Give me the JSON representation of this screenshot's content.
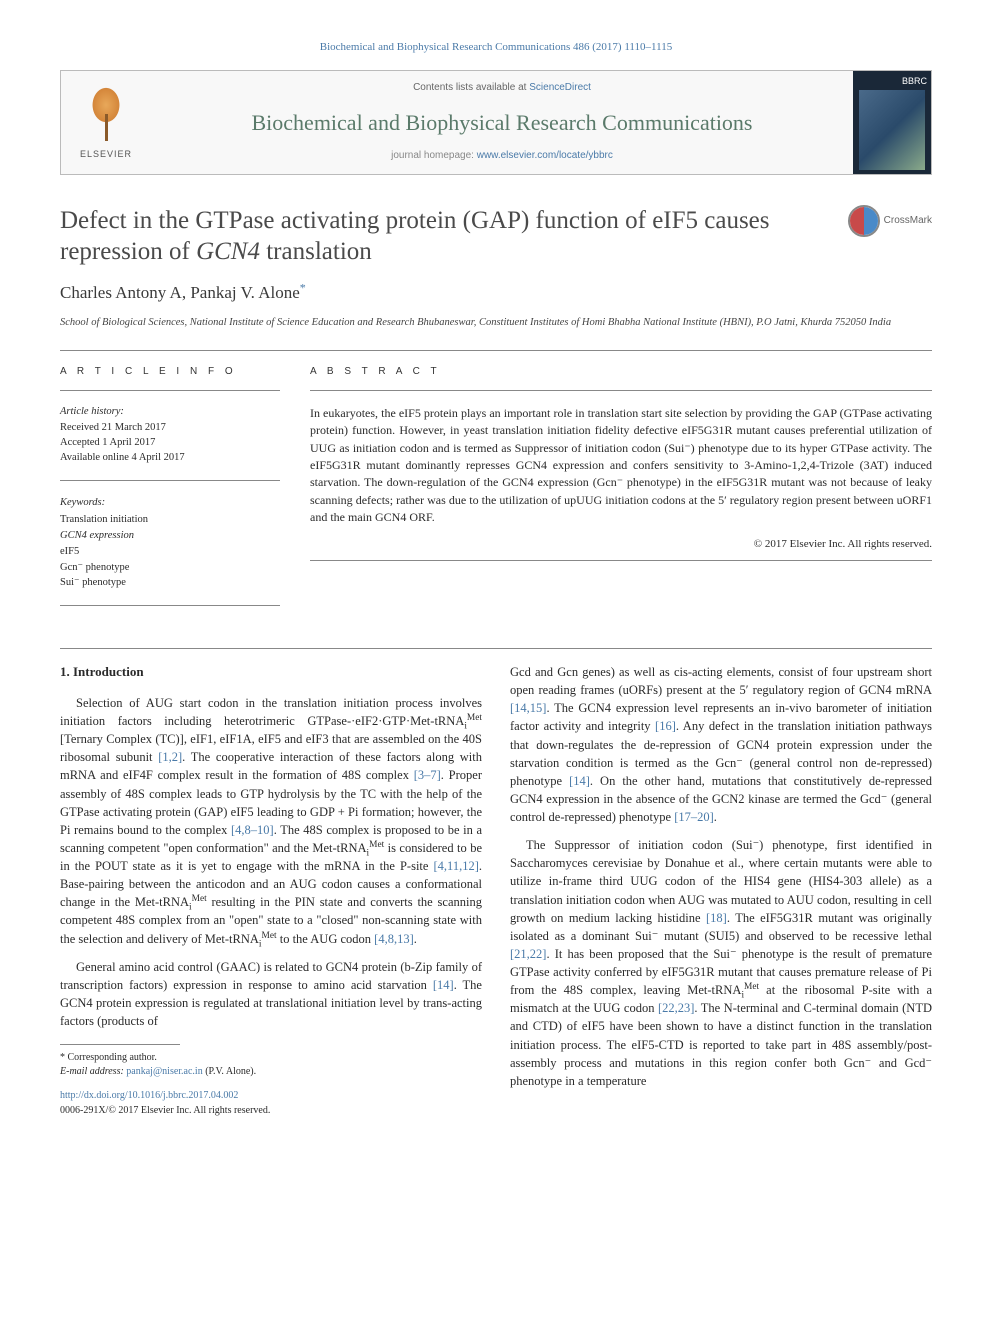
{
  "citation": "Biochemical and Biophysical Research Communications 486 (2017) 1110–1115",
  "header": {
    "publisher": "ELSEVIER",
    "contents_prefix": "Contents lists available at ",
    "contents_link": "ScienceDirect",
    "journal": "Biochemical and Biophysical Research Communications",
    "homepage_prefix": "journal homepage: ",
    "homepage_url": "www.elsevier.com/locate/ybbrc",
    "cover_label": "BBRC"
  },
  "crossmark": "CrossMark",
  "title_pre": "Defect in the GTPase activating protein (GAP) function of eIF5 causes repression of ",
  "title_em": "GCN4",
  "title_post": " translation",
  "authors": "Charles Antony A, Pankaj V. Alone",
  "author_marker": "*",
  "affiliation": "School of Biological Sciences, National Institute of Science Education and Research Bhubaneswar, Constituent Institutes of Homi Bhabha National Institute (HBNI), P.O Jatni, Khurda 752050 India",
  "labels": {
    "article_info": "A R T I C L E  I N F O",
    "abstract": "A B S T R A C T"
  },
  "history": {
    "heading": "Article history:",
    "received": "Received 21 March 2017",
    "accepted": "Accepted 1 April 2017",
    "online": "Available online 4 April 2017"
  },
  "keywords": {
    "heading": "Keywords:",
    "k1": "Translation initiation",
    "k2": "GCN4 expression",
    "k3": "eIF5",
    "k4": "Gcn⁻ phenotype",
    "k5": "Sui⁻ phenotype"
  },
  "abstract": "In eukaryotes, the eIF5 protein plays an important role in translation start site selection by providing the GAP (GTPase activating protein) function. However, in yeast translation initiation fidelity defective eIF5G31R mutant causes preferential utilization of UUG as initiation codon and is termed as Suppressor of initiation codon (Sui⁻) phenotype due to its hyper GTPase activity. The eIF5G31R mutant dominantly represses GCN4 expression and confers sensitivity to 3-Amino-1,2,4-Trizole (3AT) induced starvation. The down-regulation of the GCN4 expression (Gcn⁻ phenotype) in the eIF5G31R mutant was not because of leaky scanning defects; rather was due to the utilization of upUUG initiation codons at the 5′ regulatory region present between uORF1 and the main GCN4 ORF.",
  "abstract_copyright": "© 2017 Elsevier Inc. All rights reserved.",
  "intro_heading": "1. Introduction",
  "intro": {
    "p1a": "Selection of AUG start codon in the translation initiation process involves initiation factors including heterotrimeric GTPase-·eIF2·GTP·Met-tRNA",
    "p1b": " [Ternary Complex (TC)], eIF1, eIF1A, eIF5 and eIF3 that are assembled on the 40S ribosomal subunit ",
    "p1c": ". The cooperative interaction of these factors along with mRNA and eIF4F complex result in the formation of 48S complex ",
    "p1d": ". Proper assembly of 48S complex leads to GTP hydrolysis by the TC with the help of the GTPase activating protein (GAP) eIF5 leading to GDP + Pi formation; however, the Pi remains bound to the complex ",
    "p1e": ". The 48S complex is proposed to be in a scanning competent \"open conformation\" and the Met-tRNA",
    "p1f": " is considered to be in the POUT state as it is yet to engage with the mRNA in the P-site ",
    "p1g": ". Base-pairing between the anticodon and an AUG codon causes a conformational change in the Met-tRNA",
    "p1h": " resulting in the PIN state and converts the scanning competent 48S complex from an \"open\" state to a \"closed\" non-scanning state with the selection and delivery of Met-tRNA",
    "p1i": " to the AUG codon ",
    "p1j": ".",
    "r12": "[1,2]",
    "r37": "[3–7]",
    "r4810": "[4,8–10]",
    "r41112": "[4,11,12]",
    "r4813": "[4,8,13]",
    "p2a": "General amino acid control (GAAC) is related to GCN4 protein (b-Zip family of transcription factors) expression in response to amino acid starvation ",
    "r14": "[14]",
    "p2b": ". The GCN4 protein expression is regulated at translational initiation level by trans-acting factors (products of",
    "p3a": "Gcd and Gcn genes) as well as cis-acting elements, consist of four upstream short open reading frames (uORFs) present at the 5′ regulatory region of GCN4 mRNA ",
    "r1415": "[14,15]",
    "p3b": ". The GCN4 expression level represents an in-vivo barometer of initiation factor activity and integrity ",
    "r16": "[16]",
    "p3c": ". Any defect in the translation initiation pathways that down-regulates the de-repression of GCN4 protein expression under the starvation condition is termed as the Gcn⁻ (general control non de-repressed) phenotype ",
    "p3d": ". On the other hand, mutations that constitutively de-repressed GCN4 expression in the absence of the GCN2 kinase are termed the Gcd⁻ (general control de-repressed) phenotype ",
    "r1720": "[17–20]",
    "p3e": ".",
    "p4a": "The Suppressor of initiation codon (Sui⁻) phenotype, first identified in Saccharomyces cerevisiae by Donahue et al., where certain mutants were able to utilize in-frame third UUG codon of the HIS4 gene (HIS4-303 allele) as a translation initiation codon when AUG was mutated to AUU codon, resulting in cell growth on medium lacking histidine ",
    "r18": "[18]",
    "p4b": ". The eIF5G31R mutant was originally isolated as a dominant Sui⁻ mutant (SUI5) and observed to be recessive lethal ",
    "r2122": "[21,22]",
    "p4c": ". It has been proposed that the Sui⁻ phenotype is the result of premature GTPase activity conferred by eIF5G31R mutant that causes premature release of Pi from the 48S complex, leaving Met-tRNA",
    "p4d": " at the ribosomal P-site with a mismatch at the UUG codon ",
    "r2223": "[22,23]",
    "p4e": ". The N-terminal and C-terminal domain (NTD and CTD) of eIF5 have been shown to have a distinct function in the translation initiation process. The eIF5-CTD is reported to take part in 48S assembly/post-assembly process and mutations in this region confer both Gcn⁻ and Gcd⁻ phenotype in a temperature"
  },
  "met_sup": "Met",
  "i_sub": "i",
  "footnote": {
    "corr": "* Corresponding author.",
    "email_label": "E-mail address: ",
    "email": "pankaj@niser.ac.in",
    "email_name": " (P.V. Alone)."
  },
  "doi": {
    "url": "http://dx.doi.org/10.1016/j.bbrc.2017.04.002",
    "issn": "0006-291X/© 2017 Elsevier Inc. All rights reserved."
  },
  "colors": {
    "link": "#4a7aa8",
    "journal": "#5a7a6a",
    "text": "#2a2a2a",
    "border": "#888888"
  }
}
